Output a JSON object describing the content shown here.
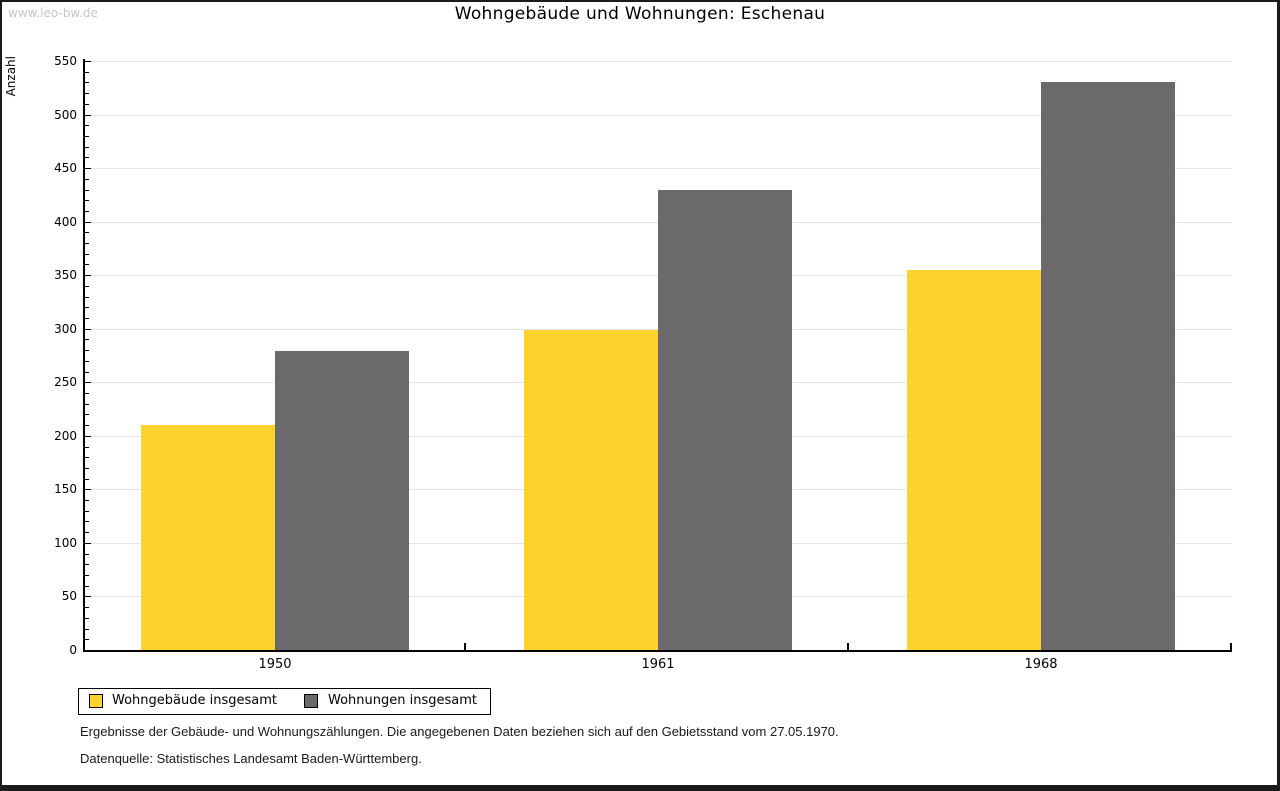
{
  "watermark": "www.leo-bw.de",
  "chart_data": {
    "type": "bar",
    "title": "Wohngebäude und Wohnungen: Eschenau",
    "ylabel": "Anzahl",
    "xlabel": "",
    "categories": [
      "1950",
      "1961",
      "1968"
    ],
    "series": [
      {
        "name": "Wohngebäude insgesamt",
        "slug": "wohngebaeude-insgesamt",
        "color": "#FCD32D",
        "values": [
          210,
          299,
          355
        ]
      },
      {
        "name": "Wohnungen insgesamt",
        "slug": "wohnungen-insgesamt",
        "color": "#6C696C",
        "values": [
          279,
          430,
          530
        ]
      }
    ],
    "ylim": [
      0,
      550
    ],
    "ytick_step": 50,
    "y_minor_tick_step": 10,
    "grid": true,
    "grid_color": "#e4e4e4",
    "axis_color": "#000000",
    "legend_position": "bottom-left"
  },
  "footnotes": [
    "Ergebnisse der Gebäude- und Wohnungszählungen. Die angegebenen Daten beziehen sich auf den Gebietsstand vom 27.05.1970.",
    "Datenquelle: Statistisches Landesamt Baden-Württemberg."
  ]
}
